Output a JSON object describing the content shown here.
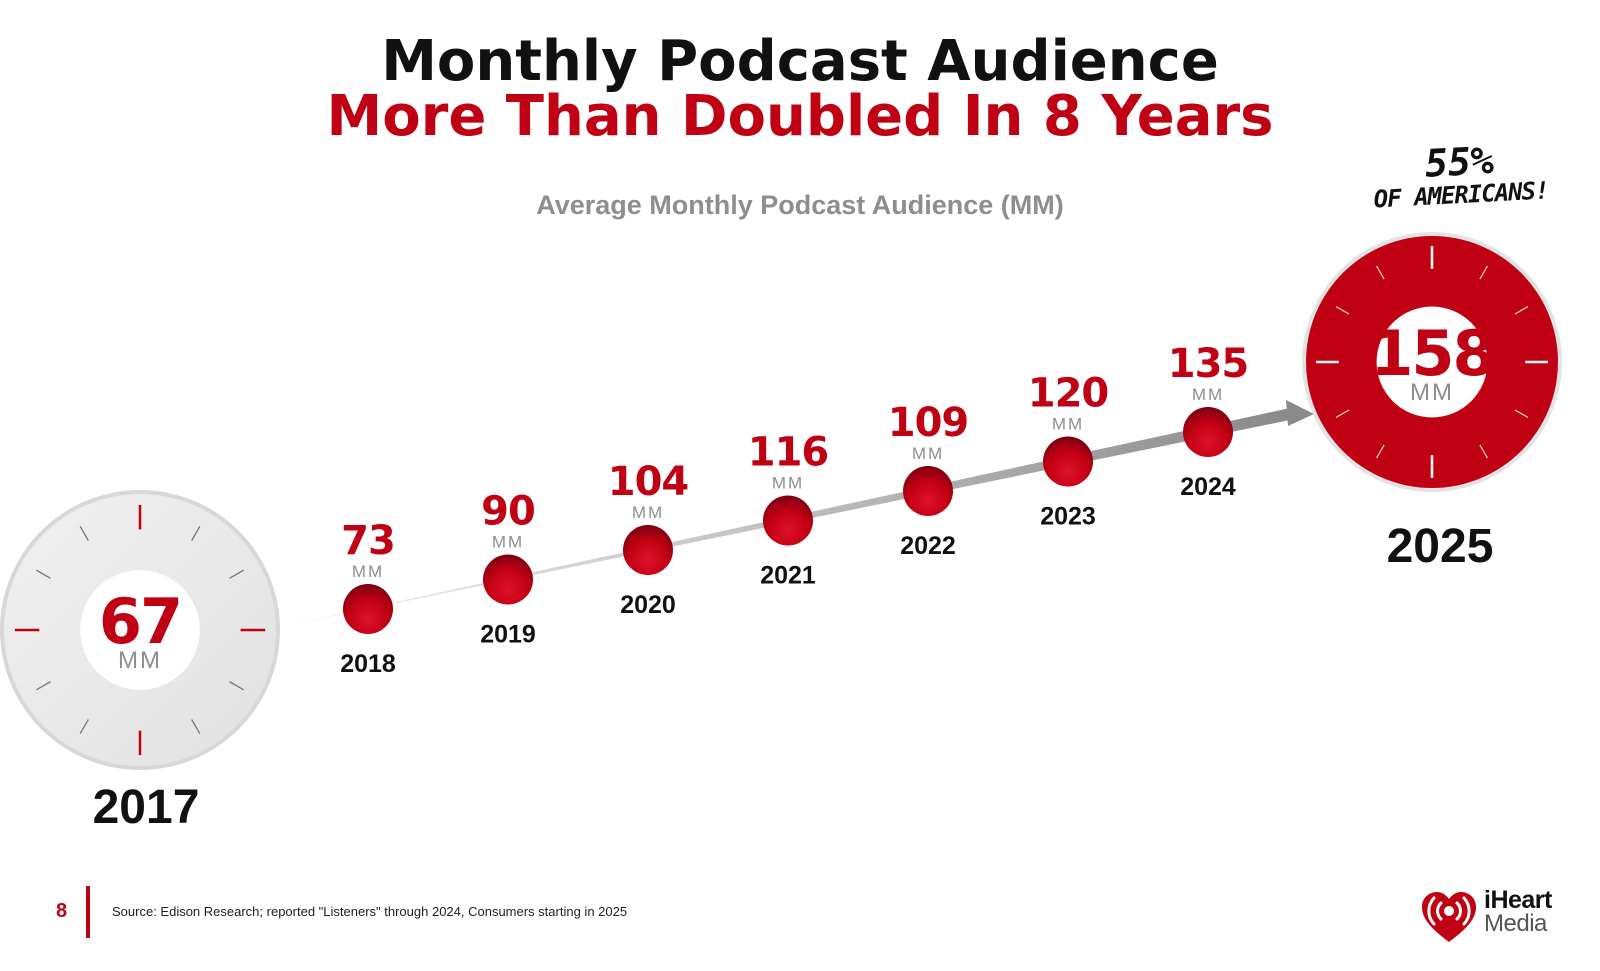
{
  "header": {
    "title_line1": "Monthly Podcast Audience",
    "title_line2": "More Than Doubled In 8 Years"
  },
  "callout": {
    "percent": "55%",
    "text": "OF AMERICANS!"
  },
  "footer": {
    "page_number": "8",
    "source": "Source: Edison Research; reported \"Listeners\" through 2024, Consumers starting in 2025"
  },
  "logo": {
    "line1": "iHeart",
    "line2": "Media"
  },
  "colors": {
    "accent": "#c00013",
    "dark_red": "#8e0014",
    "gray": "#8e8e8e",
    "text": "#111111"
  },
  "chart_data": {
    "type": "line",
    "title": "Average Monthly Podcast Audience (MM)",
    "unit": "MM",
    "categories": [
      "2017",
      "2018",
      "2019",
      "2020",
      "2021",
      "2022",
      "2023",
      "2024",
      "2025"
    ],
    "values": [
      67,
      73,
      90,
      104,
      116,
      109,
      120,
      135,
      158
    ],
    "value_labels": [
      "67",
      "73",
      "90",
      "104",
      "116",
      "109",
      "120",
      "135",
      "158"
    ],
    "grid": false,
    "legend": "none"
  }
}
